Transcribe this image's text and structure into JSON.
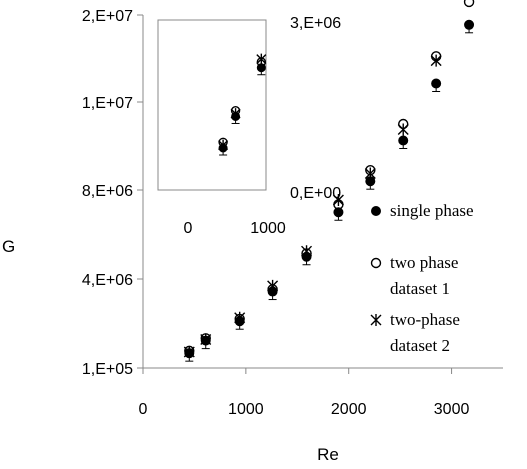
{
  "chart_data": {
    "type": "scatter",
    "xlabel": "Re",
    "ylabel": "G",
    "xlim": [
      0,
      3500
    ],
    "ylim": [
      100000,
      20000000
    ],
    "x_ticks": [
      "0",
      "1000",
      "2000",
      "3000"
    ],
    "y_ticks": [
      "1,E+05",
      "4,E+06",
      "8,E+06",
      "1,E+07",
      "2,E+07"
    ],
    "grid": false,
    "legend_position": "bottom-right",
    "series": [
      {
        "name": "single phase",
        "marker": "filled-circle",
        "points": [
          {
            "x": 450,
            "y": 750000
          },
          {
            "x": 610,
            "y": 1300000
          },
          {
            "x": 940,
            "y": 2150000
          },
          {
            "x": 1260,
            "y": 3450000
          },
          {
            "x": 1590,
            "y": 5000000
          },
          {
            "x": 1900,
            "y": 7000000
          },
          {
            "x": 2210,
            "y": 8400000
          },
          {
            "x": 2530,
            "y": 10250000
          },
          {
            "x": 2850,
            "y": 12850000
          },
          {
            "x": 3170,
            "y": 15550000
          }
        ]
      },
      {
        "name": "two phase dataset 1",
        "marker": "open-circle",
        "points": [
          {
            "x": 450,
            "y": 850000
          },
          {
            "x": 610,
            "y": 1400000
          },
          {
            "x": 940,
            "y": 2250000
          },
          {
            "x": 1260,
            "y": 3550000
          },
          {
            "x": 1590,
            "y": 5150000
          },
          {
            "x": 1900,
            "y": 7350000
          },
          {
            "x": 2210,
            "y": 8900000
          },
          {
            "x": 2530,
            "y": 11000000
          },
          {
            "x": 2850,
            "y": 14100000
          },
          {
            "x": 3170,
            "y": 16600000
          }
        ]
      },
      {
        "name": "two-phase dataset 2",
        "marker": "asterisk",
        "points": [
          {
            "x": 450,
            "y": 800000
          },
          {
            "x": 610,
            "y": 1350000
          },
          {
            "x": 940,
            "y": 2300000
          },
          {
            "x": 1260,
            "y": 3700000
          },
          {
            "x": 1590,
            "y": 5250000
          },
          {
            "x": 1900,
            "y": 7550000
          },
          {
            "x": 2210,
            "y": 8750000
          },
          {
            "x": 2530,
            "y": 10750000
          },
          {
            "x": 2850,
            "y": 13900000
          },
          {
            "x": 3170,
            "y": 17050000
          }
        ]
      }
    ],
    "inset": {
      "xlim": [
        0,
        1000
      ],
      "ylim": [
        0,
        3000000
      ],
      "x_ticks": [
        "0",
        "1000"
      ],
      "y_ticks": [
        "0,E+00",
        "3,E+06"
      ],
      "series": [
        {
          "name": "single phase",
          "marker": "filled-circle",
          "points": [
            {
              "x": 450,
              "y": 750000
            },
            {
              "x": 610,
              "y": 1300000
            },
            {
              "x": 940,
              "y": 2150000
            }
          ]
        },
        {
          "name": "two phase dataset 1",
          "marker": "open-circle",
          "points": [
            {
              "x": 450,
              "y": 850000
            },
            {
              "x": 610,
              "y": 1400000
            },
            {
              "x": 940,
              "y": 2250000
            }
          ]
        },
        {
          "name": "two-phase dataset 2",
          "marker": "asterisk",
          "points": [
            {
              "x": 450,
              "y": 800000
            },
            {
              "x": 610,
              "y": 1350000
            },
            {
              "x": 940,
              "y": 2300000
            }
          ]
        }
      ]
    },
    "legend": [
      {
        "marker": "filled-circle",
        "lines": [
          "single phase"
        ]
      },
      {
        "marker": "open-circle",
        "lines": [
          "two phase",
          "dataset 1"
        ]
      },
      {
        "marker": "asterisk",
        "lines": [
          "two-phase",
          "dataset 2"
        ]
      }
    ]
  }
}
